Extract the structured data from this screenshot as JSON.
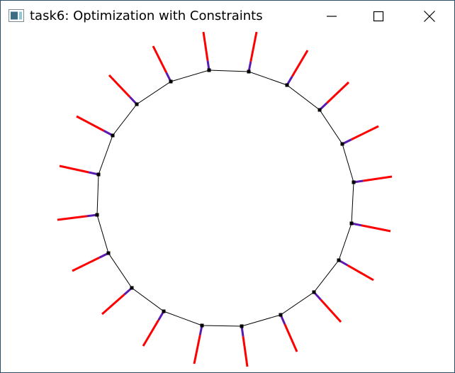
{
  "window": {
    "title": "task6: Optimization with Constraints"
  },
  "icons": {
    "app": "app-window-icon",
    "minimize": "minimize-icon",
    "maximize": "maximize-icon",
    "close": "close-icon"
  },
  "colors": {
    "contour": "#000000",
    "vertex": "#000000",
    "ray_outer": "#ff0000",
    "ray_inner": "#5a1ab0"
  },
  "simulation": {
    "node_count": 20,
    "ring_closed": true
  }
}
